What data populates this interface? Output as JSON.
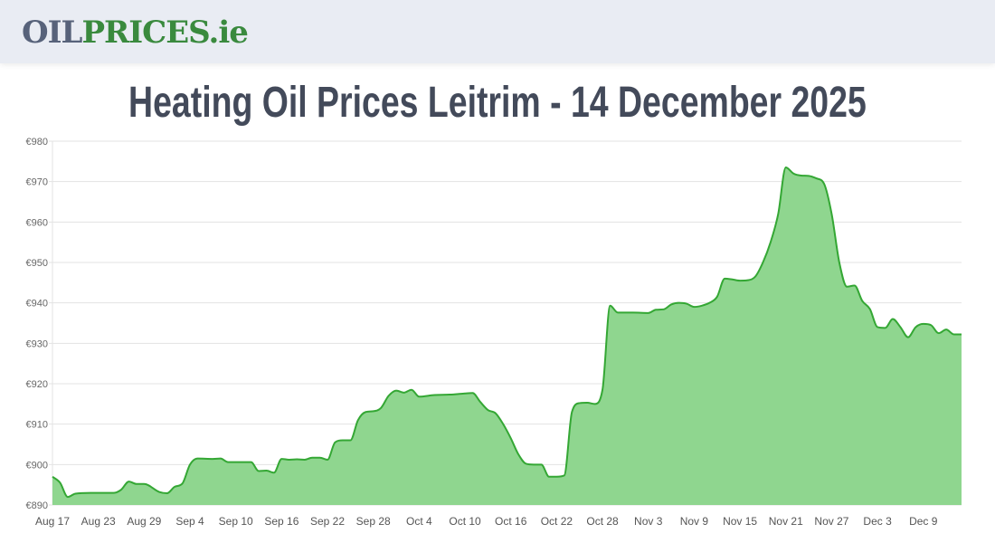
{
  "header": {
    "logo_text_part1": "OIL",
    "logo_text_part2": "PRICES.ie"
  },
  "page_title": "Heating Oil Prices Leitrim - 14 December 2025",
  "colors": {
    "line": "#34a734",
    "fill": "#8fd68f",
    "grid": "#e3e3e3",
    "logo_dark": "#57627a",
    "logo_green": "#3a8a3e"
  },
  "chart_data": {
    "type": "area",
    "title": "",
    "xlabel": "",
    "ylabel": "",
    "year": 2025,
    "ylim": [
      890,
      980
    ],
    "yticks": [
      890,
      900,
      910,
      920,
      930,
      940,
      950,
      960,
      970,
      980
    ],
    "ytick_prefix": "€",
    "xlim": [
      "Aug 17",
      "Dec 14"
    ],
    "xticks": [
      "Aug 17",
      "Aug 23",
      "Aug 29",
      "Sep 4",
      "Sep 10",
      "Sep 16",
      "Sep 22",
      "Sep 28",
      "Oct 4",
      "Oct 10",
      "Oct 16",
      "Oct 22",
      "Oct 28",
      "Nov 3",
      "Nov 9",
      "Nov 15",
      "Nov 21",
      "Nov 27",
      "Dec 3",
      "Dec 9"
    ],
    "grid": true,
    "legend": "none",
    "points": [
      [
        "Aug 17",
        897
      ],
      [
        "Aug 18",
        895.5
      ],
      [
        "Aug 19",
        892
      ],
      [
        "Aug 20",
        892.8
      ],
      [
        "Aug 22",
        893
      ],
      [
        "Aug 25",
        893
      ],
      [
        "Aug 26",
        893.8
      ],
      [
        "Aug 27",
        895.8
      ],
      [
        "Aug 28",
        895.2
      ],
      [
        "Aug 29",
        895.2
      ],
      [
        "Aug 31",
        893.2
      ],
      [
        "Sep 1",
        892.9
      ],
      [
        "Sep 2",
        894.5
      ],
      [
        "Sep 3",
        895.3
      ],
      [
        "Sep 4",
        900
      ],
      [
        "Sep 5",
        901.5
      ],
      [
        "Sep 7",
        901.4
      ],
      [
        "Sep 8",
        901.5
      ],
      [
        "Sep 9",
        900.6
      ],
      [
        "Sep 11",
        900.6
      ],
      [
        "Sep 12",
        900.6
      ],
      [
        "Sep 13",
        898.4
      ],
      [
        "Sep 14",
        898.5
      ],
      [
        "Sep 15",
        898
      ],
      [
        "Sep 16",
        901.4
      ],
      [
        "Sep 17",
        901.2
      ],
      [
        "Sep 18",
        901.3
      ],
      [
        "Sep 19",
        901.2
      ],
      [
        "Sep 20",
        901.7
      ],
      [
        "Sep 21",
        901.7
      ],
      [
        "Sep 22",
        901.2
      ],
      [
        "Sep 23",
        905.5
      ],
      [
        "Sep 24",
        906
      ],
      [
        "Sep 25",
        906
      ],
      [
        "Sep 26",
        911
      ],
      [
        "Sep 27",
        913
      ],
      [
        "Sep 28",
        913.2
      ],
      [
        "Sep 29",
        914
      ],
      [
        "Sep 30",
        917
      ],
      [
        "Oct 1",
        918.3
      ],
      [
        "Oct 2",
        917.8
      ],
      [
        "Oct 3",
        918.5
      ],
      [
        "Oct 4",
        916.8
      ],
      [
        "Oct 6",
        917.2
      ],
      [
        "Oct 8",
        917.3
      ],
      [
        "Oct 10",
        917.6
      ],
      [
        "Oct 11",
        917.7
      ],
      [
        "Oct 12",
        915.5
      ],
      [
        "Oct 13",
        913.5
      ],
      [
        "Oct 14",
        912.7
      ],
      [
        "Oct 15",
        910
      ],
      [
        "Oct 16",
        906.5
      ],
      [
        "Oct 17",
        902.5
      ],
      [
        "Oct 18",
        900.2
      ],
      [
        "Oct 19",
        900
      ],
      [
        "Oct 20",
        900
      ],
      [
        "Oct 21",
        897
      ],
      [
        "Oct 22",
        897
      ],
      [
        "Oct 23",
        897.3
      ],
      [
        "Oct 24",
        913
      ],
      [
        "Oct 25",
        915.2
      ],
      [
        "Oct 26",
        915.3
      ],
      [
        "Oct 27",
        915
      ],
      [
        "Oct 28",
        918.5
      ],
      [
        "Oct 29",
        939.3
      ],
      [
        "Oct 30",
        937.6
      ],
      [
        "Nov 1",
        937.6
      ],
      [
        "Nov 3",
        937.5
      ],
      [
        "Nov 4",
        938.3
      ],
      [
        "Nov 5",
        938.4
      ],
      [
        "Nov 6",
        939.6
      ],
      [
        "Nov 7",
        940
      ],
      [
        "Nov 8",
        939.8
      ],
      [
        "Nov 9",
        939
      ],
      [
        "Nov 10",
        939.3
      ],
      [
        "Nov 11",
        940
      ],
      [
        "Nov 12",
        941.5
      ],
      [
        "Nov 13",
        946
      ],
      [
        "Nov 14",
        945.8
      ],
      [
        "Nov 15",
        945.5
      ],
      [
        "Nov 16",
        945.6
      ],
      [
        "Nov 17",
        946.5
      ],
      [
        "Nov 18",
        950
      ],
      [
        "Nov 19",
        955
      ],
      [
        "Nov 20",
        962
      ],
      [
        "Nov 21",
        973.5
      ],
      [
        "Nov 22",
        972
      ],
      [
        "Nov 23",
        971.5
      ],
      [
        "Nov 24",
        971.4
      ],
      [
        "Nov 25",
        970.8
      ],
      [
        "Nov 26",
        969.5
      ],
      [
        "Nov 27",
        962
      ],
      [
        "Nov 28",
        950
      ],
      [
        "Nov 29",
        944
      ],
      [
        "Nov 30",
        944.3
      ],
      [
        "Dec 1",
        940.5
      ],
      [
        "Dec 2",
        938.5
      ],
      [
        "Dec 3",
        934
      ],
      [
        "Dec 4",
        933.8
      ],
      [
        "Dec 5",
        936
      ],
      [
        "Dec 6",
        934
      ],
      [
        "Dec 7",
        931.5
      ],
      [
        "Dec 8",
        934
      ],
      [
        "Dec 9",
        934.8
      ],
      [
        "Dec 10",
        934.5
      ],
      [
        "Dec 11",
        932.5
      ],
      [
        "Dec 12",
        933.4
      ],
      [
        "Dec 13",
        932.2
      ],
      [
        "Dec 14",
        932.2
      ]
    ]
  }
}
